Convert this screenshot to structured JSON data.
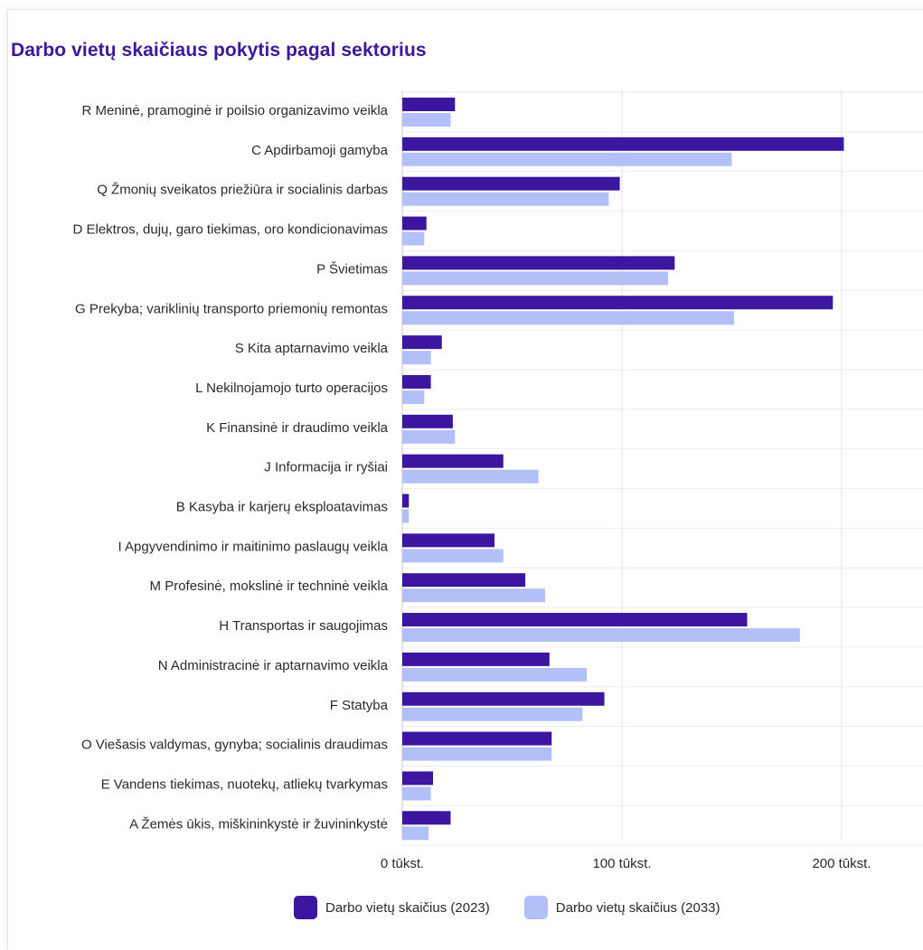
{
  "chart_data": {
    "type": "bar",
    "orientation": "horizontal",
    "title": "Darbo vietų skaičiaus pokytis pagal sektorius",
    "categories": [
      "R Meninė, pramoginė ir poilsio organizavimo veikla",
      "C Apdirbamoji gamyba",
      "Q Žmonių sveikatos priežiūra ir socialinis darbas",
      "D Elektros, dujų, garo tiekimas, oro kondicionavimas",
      "P Švietimas",
      "G Prekyba; variklinių transporto priemonių remontas",
      "S Kita aptarnavimo veikla",
      "L Nekilnojamojo turto operacijos",
      "K Finansinė ir draudimo veikla",
      "J Informacija ir ryšiai",
      "B Kasyba ir karjerų eksploatavimas",
      "I Apgyvendinimo ir maitinimo paslaugų veikla",
      "M Profesinė, mokslinė ir techninė veikla",
      "H Transportas ir saugojimas",
      "N Administracinė ir aptarnavimo veikla",
      "F Statyba",
      "O Viešasis valdymas, gynyba; socialinis draudimas",
      "E Vandens tiekimas, nuotekų, atliekų tvarkymas",
      "A Žemės ūkis, miškininkystė ir žuvininkystė"
    ],
    "series": [
      {
        "name": "Darbo vietų skaičius (2023)",
        "color": "#3d16a0",
        "values": [
          24,
          201,
          99,
          11,
          124,
          196,
          18,
          13,
          23,
          46,
          3,
          42,
          56,
          157,
          67,
          92,
          68,
          14,
          22
        ]
      },
      {
        "name": "Darbo vietų skaičius (2033)",
        "color": "#b3c0f7",
        "values": [
          22,
          150,
          94,
          10,
          121,
          151,
          13,
          10,
          24,
          62,
          3,
          46,
          65,
          181,
          84,
          82,
          68,
          13,
          12
        ]
      }
    ],
    "xlim": [
      0,
      240
    ],
    "xticks": [
      {
        "value": 0,
        "label": "0 tūkst."
      },
      {
        "value": 100,
        "label": "100 tūkst."
      },
      {
        "value": 200,
        "label": "200 tūkst."
      }
    ],
    "grid": true,
    "legend_position": "bottom"
  }
}
